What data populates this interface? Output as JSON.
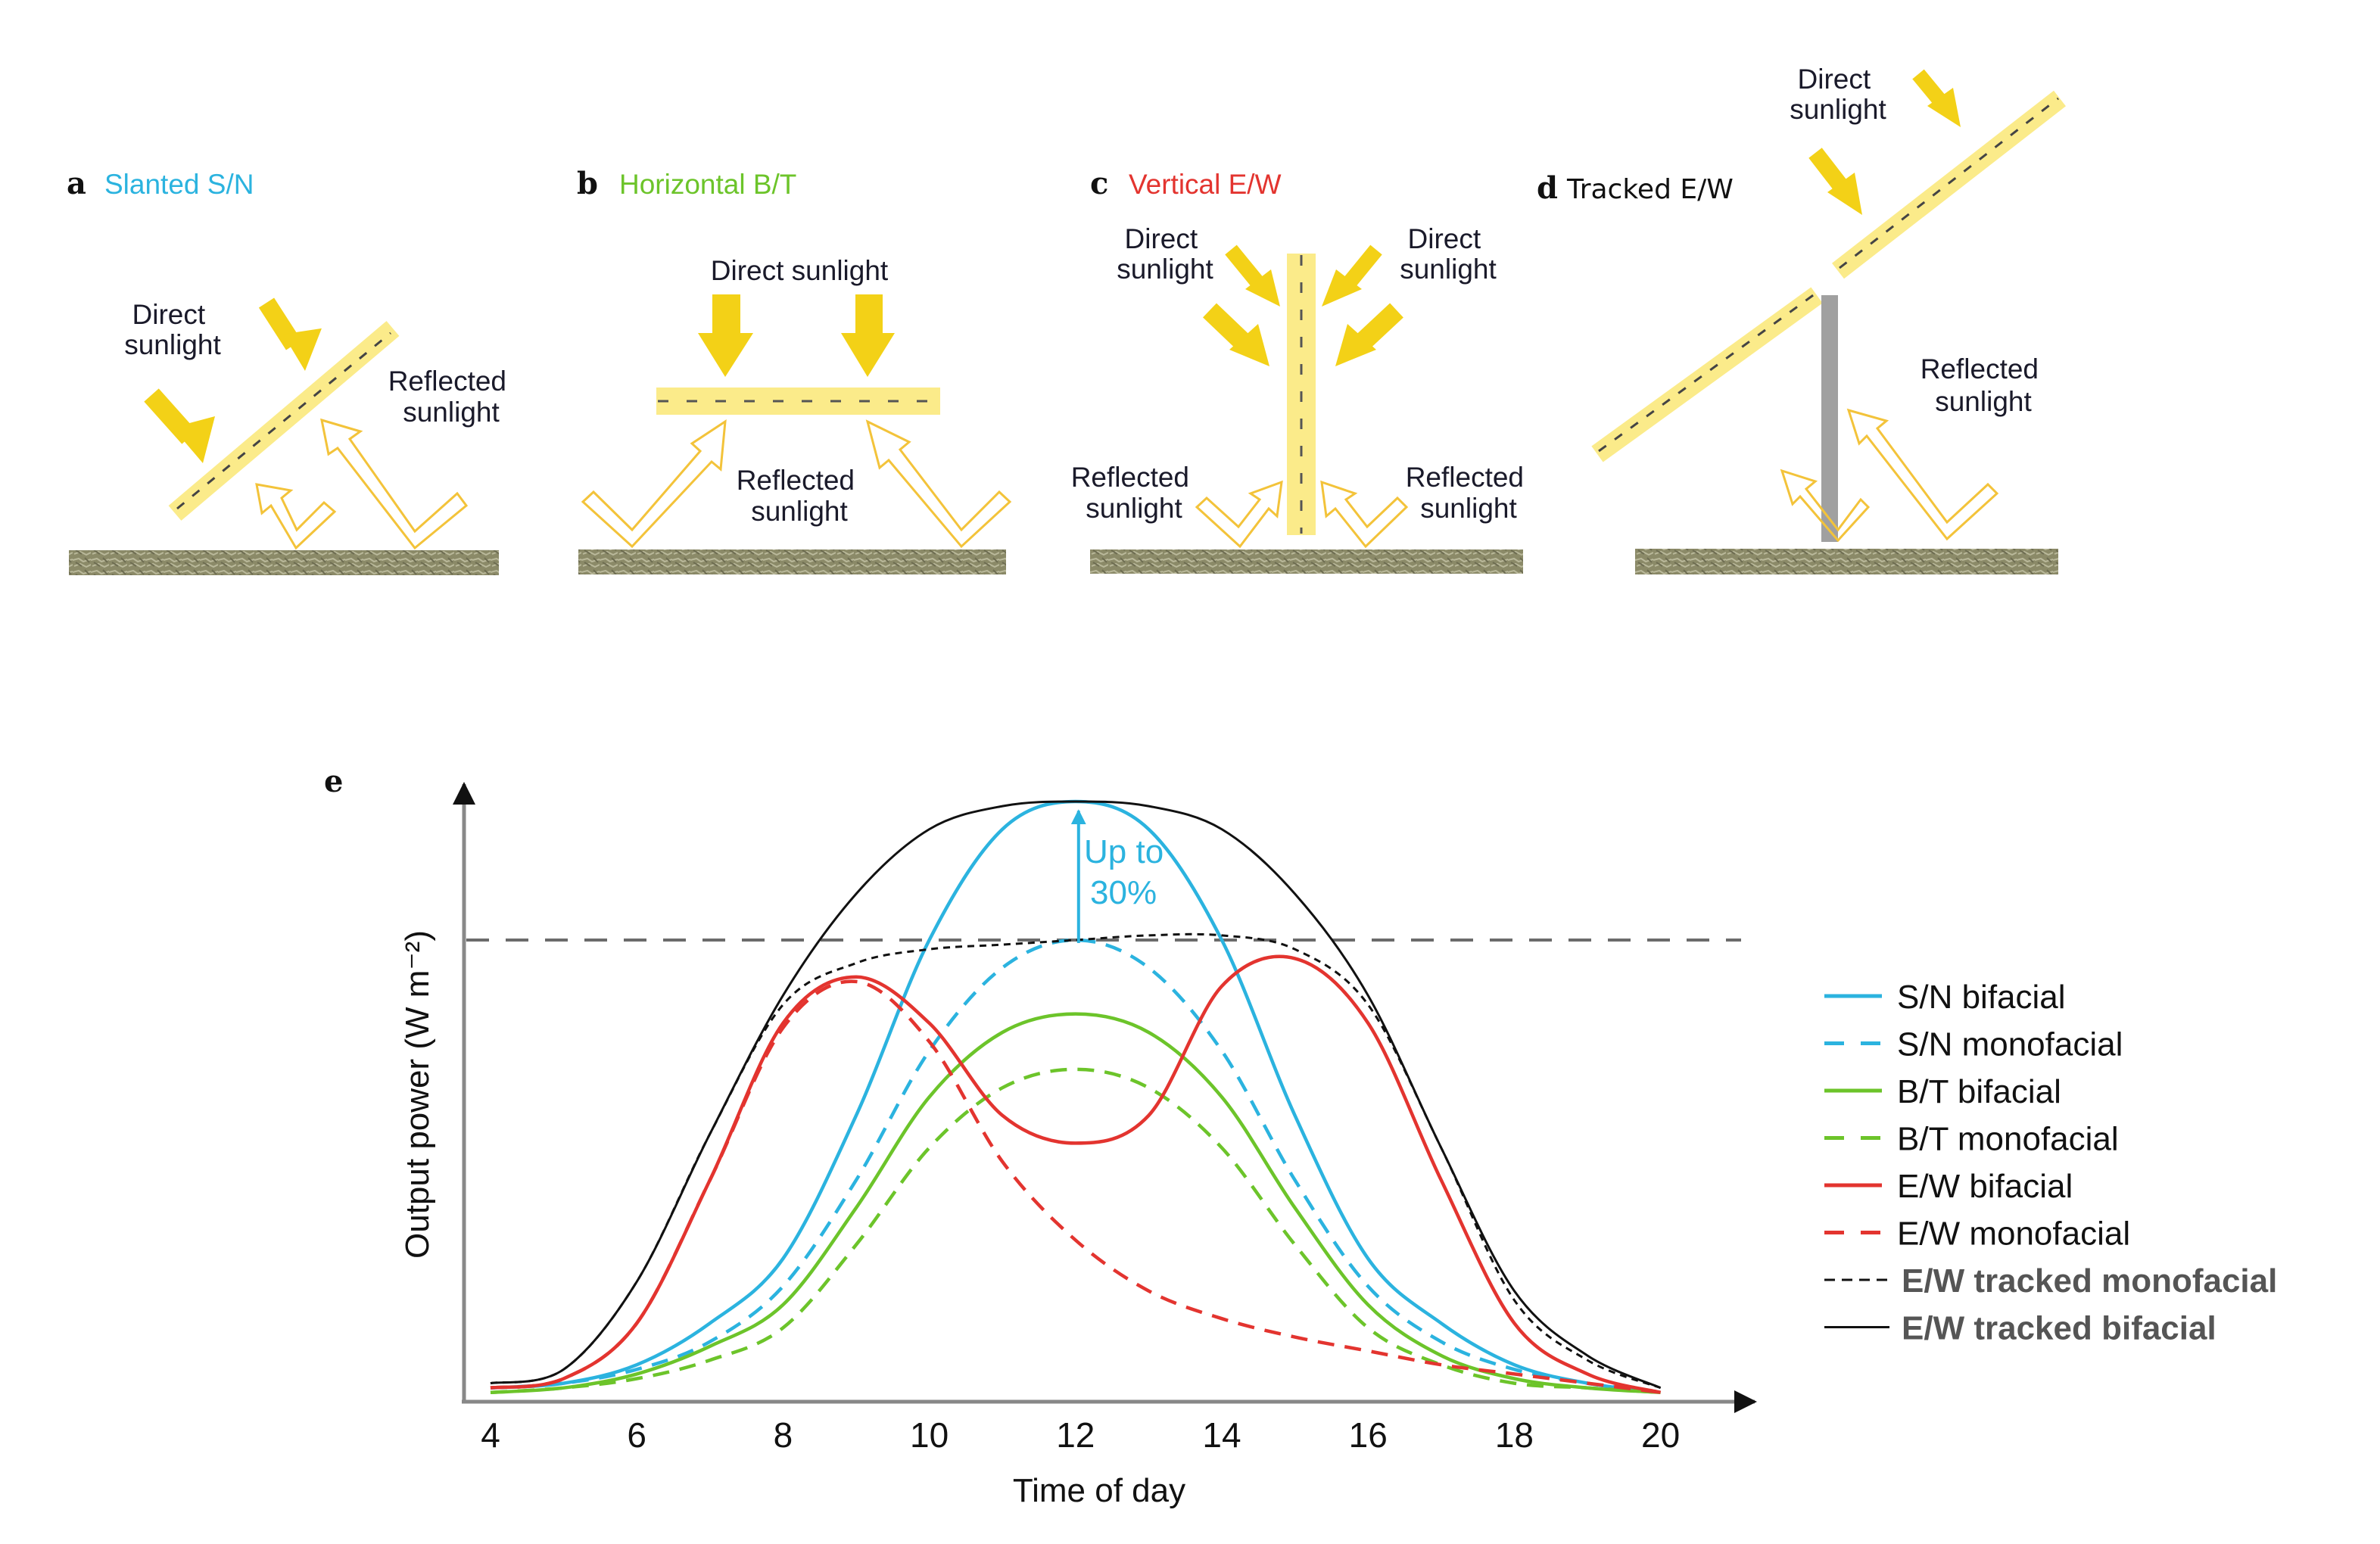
{
  "colors": {
    "sn": "#2bb3df",
    "bt": "#6cc42a",
    "ew": "#e3342f",
    "tracked": "#111111",
    "panel_fill": "#fbeb8a",
    "sun_arrow": "#f3d117",
    "reflect_outline": "#f3c33a",
    "ground": "#8e8d6c",
    "post": "#a0a0a0",
    "reference_line": "#6b6b6b"
  },
  "panels": {
    "a": {
      "letter": "a",
      "title": "Slanted S/N",
      "direct": [
        "Direct",
        "sunlight"
      ],
      "reflected": [
        "Reflected",
        "sunlight"
      ]
    },
    "b": {
      "letter": "b",
      "title": "Horizontal B/T",
      "direct": "Direct sunlight",
      "reflected": [
        "Reflected",
        "sunlight"
      ]
    },
    "c": {
      "letter": "c",
      "title": "Vertical E/W",
      "direct_left": [
        "Direct",
        "sunlight"
      ],
      "direct_right": [
        "Direct",
        "sunlight"
      ],
      "reflected_left": [
        "Reflected",
        "sunlight"
      ],
      "reflected_right": [
        "Reflected",
        "sunlight"
      ]
    },
    "d": {
      "letter": "d",
      "title": "Tracked E/W",
      "direct": [
        "Direct",
        "sunlight"
      ],
      "reflected": [
        "Reflected",
        "sunlight"
      ]
    }
  },
  "chart_data": {
    "type": "line",
    "panel_letter": "e",
    "title": "",
    "xlabel": "Time of day",
    "ylabel": "Output power (W m⁻²)",
    "x_ticks": [
      4,
      6,
      8,
      10,
      12,
      14,
      16,
      18,
      20
    ],
    "xlim": [
      4,
      20
    ],
    "ylim": [
      0,
      135
    ],
    "y_units_note": "relative to monofacial S/N peak = 100",
    "grid": false,
    "legend_position": "right",
    "x": [
      4,
      5,
      6,
      7,
      8,
      9,
      10,
      11,
      12,
      13,
      14,
      15,
      16,
      17,
      18,
      19,
      20
    ],
    "series": [
      {
        "name": "S/N bifacial",
        "color_key": "sn",
        "dash": "solid",
        "values": [
          3,
          4,
          8,
          17,
          31,
          62,
          100,
          124,
          130,
          124,
          100,
          62,
          31,
          17,
          8,
          4,
          2
        ]
      },
      {
        "name": "S/N monofacial",
        "color_key": "sn",
        "dash": "dashed",
        "values": [
          3,
          4,
          7,
          13,
          25,
          48,
          76,
          94,
          100,
          94,
          76,
          48,
          25,
          13,
          7,
          4,
          2
        ]
      },
      {
        "name": "B/T bifacial",
        "color_key": "bt",
        "dash": "solid",
        "values": [
          2,
          3,
          6,
          12,
          21,
          42,
          66,
          80,
          84,
          80,
          66,
          42,
          21,
          10,
          5,
          3,
          2
        ]
      },
      {
        "name": "B/T monofacial",
        "color_key": "bt",
        "dash": "dashed",
        "values": [
          2,
          3,
          5,
          9,
          16,
          34,
          55,
          68,
          72,
          68,
          55,
          34,
          16,
          8,
          4,
          3,
          2
        ]
      },
      {
        "name": "E/W bifacial",
        "color_key": "ew",
        "dash": "solid",
        "values": [
          3,
          5,
          17,
          48,
          82,
          92,
          82,
          62,
          56,
          62,
          90,
          96,
          82,
          48,
          17,
          6,
          2
        ]
      },
      {
        "name": "E/W monofacial",
        "color_key": "ew",
        "dash": "dashed",
        "values": [
          3,
          5,
          17,
          48,
          81,
          91,
          78,
          52,
          35,
          24,
          18,
          14,
          11,
          8,
          6,
          4,
          2
        ]
      },
      {
        "name": "E/W tracked monofacial",
        "color_key": "tracked",
        "dash": "dotted",
        "values": [
          4,
          7,
          26,
          58,
          86,
          95,
          98,
          99,
          100,
          101,
          101,
          98,
          86,
          55,
          22,
          9,
          3
        ]
      },
      {
        "name": "E/W tracked bifacial",
        "color_key": "tracked",
        "dash": "solid",
        "values": [
          4,
          7,
          26,
          58,
          88,
          110,
          124,
          129,
          130,
          129,
          124,
          110,
          88,
          55,
          24,
          10,
          3
        ]
      }
    ],
    "reference_line": {
      "value": 100,
      "style": "dashed"
    },
    "annotation": {
      "lines": [
        "Up to",
        "30%"
      ],
      "from": 100,
      "to": 130,
      "at_x": 12
    }
  }
}
